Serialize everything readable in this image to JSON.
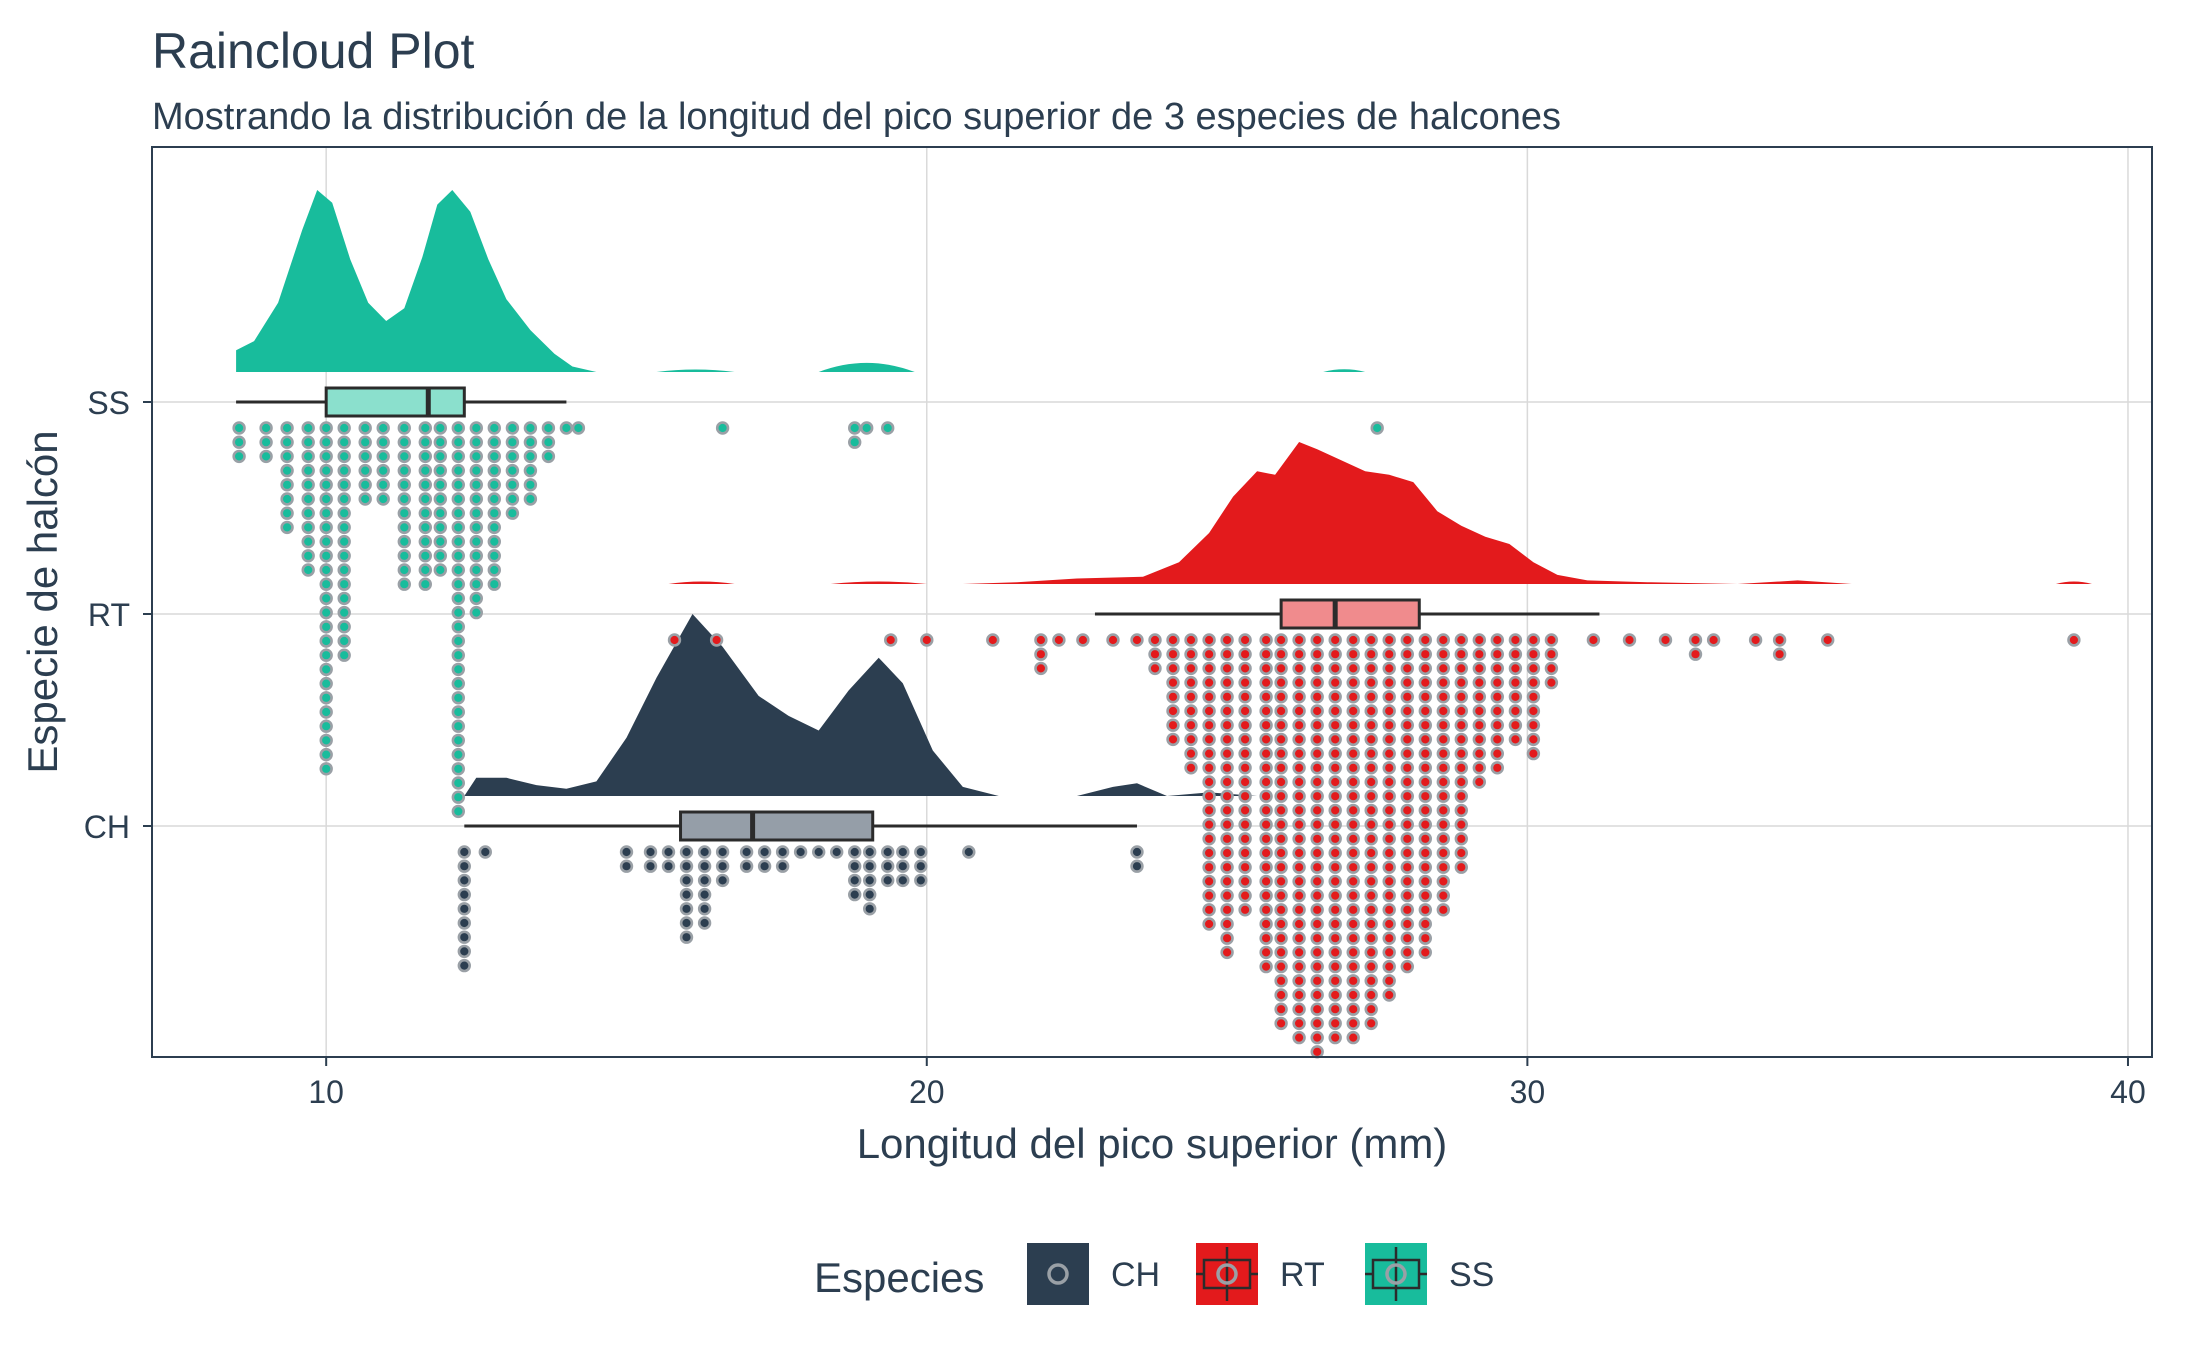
{
  "chart_data": {
    "type": "raincloud",
    "title": "Raincloud Plot",
    "subtitle": "Mostrando la distribución de la longitud del pico superior de 3 especies de halcones",
    "xlabel": "Longitud del pico superior (mm)",
    "ylabel": "Especie de halcón",
    "xlim": [
      7.1,
      40.4
    ],
    "xticks": [
      10,
      20,
      30,
      40
    ],
    "xtick_labels": [
      "10",
      "20",
      "30",
      "40"
    ],
    "grid": true,
    "legend": {
      "title": "Especies",
      "position": "bottom"
    },
    "categories": [
      "SS",
      "RT",
      "CH"
    ],
    "series": [
      {
        "name": "SS",
        "color": "#18bc9c",
        "box_fill": "#8be0cd",
        "box": {
          "whisker_low": 8.5,
          "q1": 10.0,
          "median": 11.7,
          "q3": 12.3,
          "whisker_high": 14.0
        },
        "density": [
          [
            8.5,
            0.12
          ],
          [
            8.8,
            0.17
          ],
          [
            9.2,
            0.38
          ],
          [
            9.6,
            0.78
          ],
          [
            9.85,
            1.0
          ],
          [
            10.1,
            0.93
          ],
          [
            10.4,
            0.62
          ],
          [
            10.7,
            0.38
          ],
          [
            11.0,
            0.28
          ],
          [
            11.3,
            0.35
          ],
          [
            11.6,
            0.63
          ],
          [
            11.85,
            0.92
          ],
          [
            12.1,
            1.0
          ],
          [
            12.4,
            0.88
          ],
          [
            12.7,
            0.62
          ],
          [
            13.0,
            0.4
          ],
          [
            13.4,
            0.23
          ],
          [
            13.8,
            0.1
          ],
          [
            14.1,
            0.03
          ],
          [
            14.5,
            0.0
          ]
        ],
        "density_bumps": [
          [
            15.5,
            16.8,
            0.012
          ],
          [
            18.2,
            19.8,
            0.05
          ],
          [
            26.6,
            27.3,
            0.015
          ]
        ],
        "dots": [
          [
            8.55,
            3
          ],
          [
            9.0,
            3
          ],
          [
            9.35,
            8
          ],
          [
            9.7,
            11
          ],
          [
            10.0,
            25
          ],
          [
            10.3,
            17
          ],
          [
            10.65,
            6
          ],
          [
            10.95,
            6
          ],
          [
            11.3,
            12
          ],
          [
            11.65,
            12
          ],
          [
            11.9,
            11
          ],
          [
            12.2,
            28
          ],
          [
            12.5,
            14
          ],
          [
            12.8,
            12
          ],
          [
            13.1,
            7
          ],
          [
            13.4,
            6
          ],
          [
            13.7,
            3
          ],
          [
            14.0,
            1
          ],
          [
            14.2,
            1
          ],
          [
            16.6,
            1
          ],
          [
            18.8,
            2
          ],
          [
            19.0,
            1
          ],
          [
            19.35,
            1
          ],
          [
            27.5,
            1
          ]
        ]
      },
      {
        "name": "RT",
        "color": "#e31a1c",
        "box_fill": "#f08b8d",
        "box": {
          "whisker_low": 22.8,
          "q1": 25.9,
          "median": 26.8,
          "q3": 28.2,
          "whisker_high": 31.2
        },
        "density": [
          [
            20.6,
            0.0
          ],
          [
            21.5,
            0.01
          ],
          [
            22.5,
            0.03
          ],
          [
            23.6,
            0.04
          ],
          [
            24.2,
            0.12
          ],
          [
            24.7,
            0.28
          ],
          [
            25.1,
            0.48
          ],
          [
            25.5,
            0.62
          ],
          [
            25.8,
            0.6
          ],
          [
            26.2,
            0.78
          ],
          [
            26.5,
            0.74
          ],
          [
            26.9,
            0.68
          ],
          [
            27.3,
            0.62
          ],
          [
            27.7,
            0.6
          ],
          [
            28.1,
            0.56
          ],
          [
            28.5,
            0.4
          ],
          [
            28.9,
            0.32
          ],
          [
            29.3,
            0.26
          ],
          [
            29.7,
            0.22
          ],
          [
            30.1,
            0.12
          ],
          [
            30.5,
            0.05
          ],
          [
            31.0,
            0.02
          ],
          [
            32.0,
            0.01
          ],
          [
            33.5,
            0.0
          ],
          [
            34.5,
            0.02
          ],
          [
            35.4,
            0.0
          ]
        ],
        "density_bumps": [
          [
            15.7,
            16.8,
            0.01
          ],
          [
            18.4,
            20.0,
            0.01
          ],
          [
            38.8,
            39.4,
            0.01
          ]
        ],
        "dots": [
          [
            15.8,
            1
          ],
          [
            16.5,
            1
          ],
          [
            19.4,
            1
          ],
          [
            20.0,
            1
          ],
          [
            21.1,
            1
          ],
          [
            21.9,
            3
          ],
          [
            22.2,
            1
          ],
          [
            22.6,
            1
          ],
          [
            23.1,
            1
          ],
          [
            23.5,
            1
          ],
          [
            23.8,
            3
          ],
          [
            24.1,
            8
          ],
          [
            24.4,
            10
          ],
          [
            24.7,
            21
          ],
          [
            25.0,
            23
          ],
          [
            25.3,
            20
          ],
          [
            25.65,
            24
          ],
          [
            25.9,
            28
          ],
          [
            26.2,
            29
          ],
          [
            26.5,
            30
          ],
          [
            26.8,
            29
          ],
          [
            27.1,
            29
          ],
          [
            27.4,
            28
          ],
          [
            27.7,
            26
          ],
          [
            28.0,
            24
          ],
          [
            28.3,
            23
          ],
          [
            28.6,
            20
          ],
          [
            28.9,
            17
          ],
          [
            29.2,
            11
          ],
          [
            29.5,
            10
          ],
          [
            29.8,
            8
          ],
          [
            30.1,
            9
          ],
          [
            30.4,
            4
          ],
          [
            31.1,
            1
          ],
          [
            31.7,
            1
          ],
          [
            32.3,
            1
          ],
          [
            32.8,
            2
          ],
          [
            33.1,
            1
          ],
          [
            33.8,
            1
          ],
          [
            34.2,
            2
          ],
          [
            35.0,
            1
          ],
          [
            39.1,
            1
          ]
        ]
      },
      {
        "name": "CH",
        "color": "#2c3e50",
        "box_fill": "#959ea8",
        "box": {
          "whisker_low": 12.3,
          "q1": 15.9,
          "median": 17.1,
          "q3": 19.1,
          "whisker_high": 23.5
        },
        "density": [
          [
            12.3,
            0.0
          ],
          [
            12.5,
            0.1
          ],
          [
            13.0,
            0.1
          ],
          [
            13.5,
            0.06
          ],
          [
            14.0,
            0.04
          ],
          [
            14.5,
            0.08
          ],
          [
            15.0,
            0.32
          ],
          [
            15.5,
            0.65
          ],
          [
            16.1,
            1.0
          ],
          [
            16.6,
            0.82
          ],
          [
            17.2,
            0.55
          ],
          [
            17.7,
            0.44
          ],
          [
            18.2,
            0.36
          ],
          [
            18.7,
            0.58
          ],
          [
            19.2,
            0.76
          ],
          [
            19.6,
            0.62
          ],
          [
            20.1,
            0.25
          ],
          [
            20.6,
            0.05
          ],
          [
            21.2,
            0.0
          ],
          [
            22.5,
            0.0
          ],
          [
            23.1,
            0.05
          ],
          [
            23.5,
            0.07
          ],
          [
            24.0,
            0.0
          ],
          [
            24.7,
            0.02
          ],
          [
            25.5,
            0.0
          ]
        ],
        "density_bumps": [],
        "dots": [
          [
            12.3,
            9
          ],
          [
            12.65,
            1
          ],
          [
            15.0,
            2
          ],
          [
            15.4,
            2
          ],
          [
            15.7,
            2
          ],
          [
            16.0,
            7
          ],
          [
            16.3,
            6
          ],
          [
            16.6,
            3
          ],
          [
            17.0,
            2
          ],
          [
            17.3,
            2
          ],
          [
            17.6,
            2
          ],
          [
            17.9,
            1
          ],
          [
            18.2,
            1
          ],
          [
            18.5,
            1
          ],
          [
            18.8,
            4
          ],
          [
            19.05,
            5
          ],
          [
            19.35,
            3
          ],
          [
            19.6,
            3
          ],
          [
            19.9,
            3
          ],
          [
            20.7,
            1
          ],
          [
            23.5,
            2
          ]
        ]
      }
    ]
  }
}
